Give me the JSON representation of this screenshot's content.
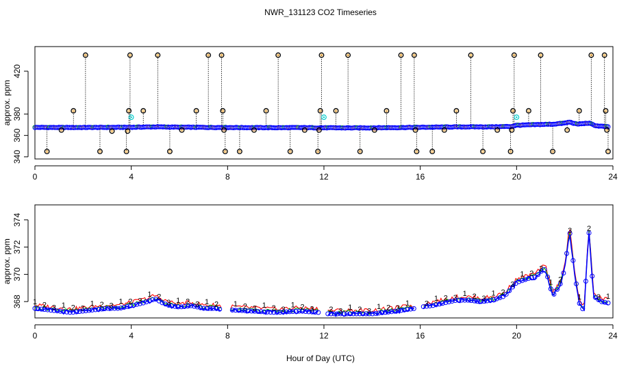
{
  "title": "NWR_131123  CO2 Timeseries",
  "xlabel": "Hour of Day (UTC)",
  "chart_data": [
    {
      "type": "scatter",
      "panel": "top",
      "ylabel": "approx. ppm",
      "xlim": [
        0,
        24
      ],
      "ylim": [
        338,
        443
      ],
      "xticks": [
        0,
        4,
        8,
        12,
        16,
        20,
        24
      ],
      "xtick_labels": [
        "0",
        "4",
        "8",
        "12",
        "16",
        "20",
        "24"
      ],
      "yticks": [
        340,
        360,
        380,
        420
      ],
      "ytick_labels": [
        "340",
        "360",
        "380",
        "420"
      ],
      "baseline": {
        "x": [
          0,
          1,
          2,
          3,
          4,
          5,
          6,
          7,
          8,
          9,
          10,
          11,
          12,
          13,
          14,
          15,
          16,
          17,
          18,
          19,
          19.8,
          20,
          20.5,
          21,
          21.5,
          22,
          22.2,
          22.5,
          23,
          23.3,
          23.8
        ],
        "y": [
          367.5,
          367.4,
          367.4,
          367.5,
          367.6,
          368,
          367.7,
          367.5,
          367.4,
          367.3,
          367.2,
          367.3,
          367.1,
          367,
          367.1,
          367.3,
          367.6,
          367.8,
          368,
          368,
          368.4,
          369.5,
          369.8,
          370.2,
          370.5,
          371.5,
          372.5,
          370.5,
          371.5,
          369,
          368
        ]
      },
      "spike_points": [
        {
          "x": 0.5,
          "y": 345
        },
        {
          "x": 1.1,
          "y": 365
        },
        {
          "x": 1.6,
          "y": 383
        },
        {
          "x": 2.1,
          "y": 435
        },
        {
          "x": 2.7,
          "y": 345
        },
        {
          "x": 3.2,
          "y": 364
        },
        {
          "x": 3.8,
          "y": 345
        },
        {
          "x": 3.85,
          "y": 364
        },
        {
          "x": 3.9,
          "y": 383
        },
        {
          "x": 3.95,
          "y": 435
        },
        {
          "x": 4.5,
          "y": 383
        },
        {
          "x": 5.1,
          "y": 435
        },
        {
          "x": 5.6,
          "y": 345
        },
        {
          "x": 6.1,
          "y": 365
        },
        {
          "x": 6.7,
          "y": 383
        },
        {
          "x": 7.2,
          "y": 435
        },
        {
          "x": 7.75,
          "y": 435
        },
        {
          "x": 7.8,
          "y": 383
        },
        {
          "x": 7.85,
          "y": 365
        },
        {
          "x": 7.9,
          "y": 345
        },
        {
          "x": 8.5,
          "y": 345
        },
        {
          "x": 9.1,
          "y": 365
        },
        {
          "x": 9.6,
          "y": 383
        },
        {
          "x": 10.1,
          "y": 435
        },
        {
          "x": 10.6,
          "y": 345
        },
        {
          "x": 11.2,
          "y": 365
        },
        {
          "x": 11.75,
          "y": 345
        },
        {
          "x": 11.8,
          "y": 365
        },
        {
          "x": 11.85,
          "y": 383
        },
        {
          "x": 11.9,
          "y": 435
        },
        {
          "x": 12.5,
          "y": 383
        },
        {
          "x": 13.0,
          "y": 435
        },
        {
          "x": 13.5,
          "y": 345
        },
        {
          "x": 14.1,
          "y": 365
        },
        {
          "x": 14.6,
          "y": 383
        },
        {
          "x": 15.2,
          "y": 435
        },
        {
          "x": 15.75,
          "y": 435
        },
        {
          "x": 15.8,
          "y": 365
        },
        {
          "x": 15.85,
          "y": 345
        },
        {
          "x": 16.5,
          "y": 345
        },
        {
          "x": 17.0,
          "y": 365
        },
        {
          "x": 17.5,
          "y": 383
        },
        {
          "x": 18.1,
          "y": 435
        },
        {
          "x": 18.6,
          "y": 345
        },
        {
          "x": 19.2,
          "y": 365
        },
        {
          "x": 19.75,
          "y": 345
        },
        {
          "x": 19.8,
          "y": 365
        },
        {
          "x": 19.85,
          "y": 383
        },
        {
          "x": 19.9,
          "y": 435
        },
        {
          "x": 20.5,
          "y": 383
        },
        {
          "x": 21.0,
          "y": 435
        },
        {
          "x": 21.5,
          "y": 345
        },
        {
          "x": 22.1,
          "y": 365
        },
        {
          "x": 22.6,
          "y": 383
        },
        {
          "x": 23.1,
          "y": 435
        },
        {
          "x": 23.65,
          "y": 435
        },
        {
          "x": 23.7,
          "y": 383
        },
        {
          "x": 23.75,
          "y": 365
        },
        {
          "x": 23.8,
          "y": 345
        }
      ],
      "cyan_points": [
        {
          "x": 4.0,
          "y": 377
        },
        {
          "x": 12.0,
          "y": 377
        },
        {
          "x": 20.0,
          "y": 377
        }
      ],
      "colors": {
        "black": "#000000",
        "blue": "#0000ff",
        "red": "#ff0000",
        "orange": "#ff9900",
        "cyan": "#00cccc",
        "green": "#00aa00"
      }
    },
    {
      "type": "line",
      "panel": "bottom",
      "ylabel": "approx. ppm",
      "xlim": [
        0,
        24
      ],
      "ylim": [
        366.8,
        375.1
      ],
      "xticks": [
        0,
        4,
        8,
        12,
        16,
        20,
        24
      ],
      "xtick_labels": [
        "0",
        "4",
        "8",
        "12",
        "16",
        "20",
        "24"
      ],
      "yticks": [
        368,
        370,
        372,
        374
      ],
      "ytick_labels": [
        "368",
        "370",
        "372",
        "374"
      ],
      "series_labels": [
        "1",
        "2",
        "3"
      ],
      "series_colors": [
        "#ff0000",
        "#00aa00",
        "#0000ff"
      ],
      "gaps": [
        [
          7.8,
          8.1
        ],
        [
          11.8,
          12.1
        ],
        [
          15.8,
          16.1
        ]
      ],
      "profile": {
        "x": [
          0,
          0.5,
          1,
          1.5,
          2,
          2.5,
          3,
          3.5,
          4,
          4.5,
          5,
          5.3,
          5.6,
          6,
          6.5,
          7,
          7.5,
          7.8,
          8,
          9,
          10,
          11,
          11.8,
          12,
          13,
          14,
          15,
          15.8,
          16,
          16.5,
          17,
          17.5,
          18,
          18.5,
          19,
          19.5,
          20,
          20.5,
          20.8,
          21.0,
          21.2,
          21.5,
          21.8,
          22.0,
          22.2,
          22.4,
          22.6,
          22.8,
          23.0,
          23.2,
          23.5,
          23.8
        ],
        "y": [
          367.6,
          367.5,
          367.4,
          367.3,
          367.4,
          367.5,
          367.6,
          367.6,
          367.8,
          368.0,
          368.3,
          368.0,
          367.8,
          367.7,
          367.8,
          367.6,
          367.6,
          367.5,
          367.5,
          367.4,
          367.3,
          367.4,
          367.3,
          367.2,
          367.2,
          367.2,
          367.4,
          367.6,
          367.7,
          367.8,
          368.0,
          368.2,
          368.2,
          368.1,
          368.2,
          368.5,
          369.5,
          369.8,
          369.9,
          370.3,
          370.5,
          368.5,
          369.3,
          370.5,
          373.3,
          370.3,
          368.0,
          367.4,
          373.3,
          368.5,
          368.1,
          368.0
        ]
      }
    }
  ]
}
